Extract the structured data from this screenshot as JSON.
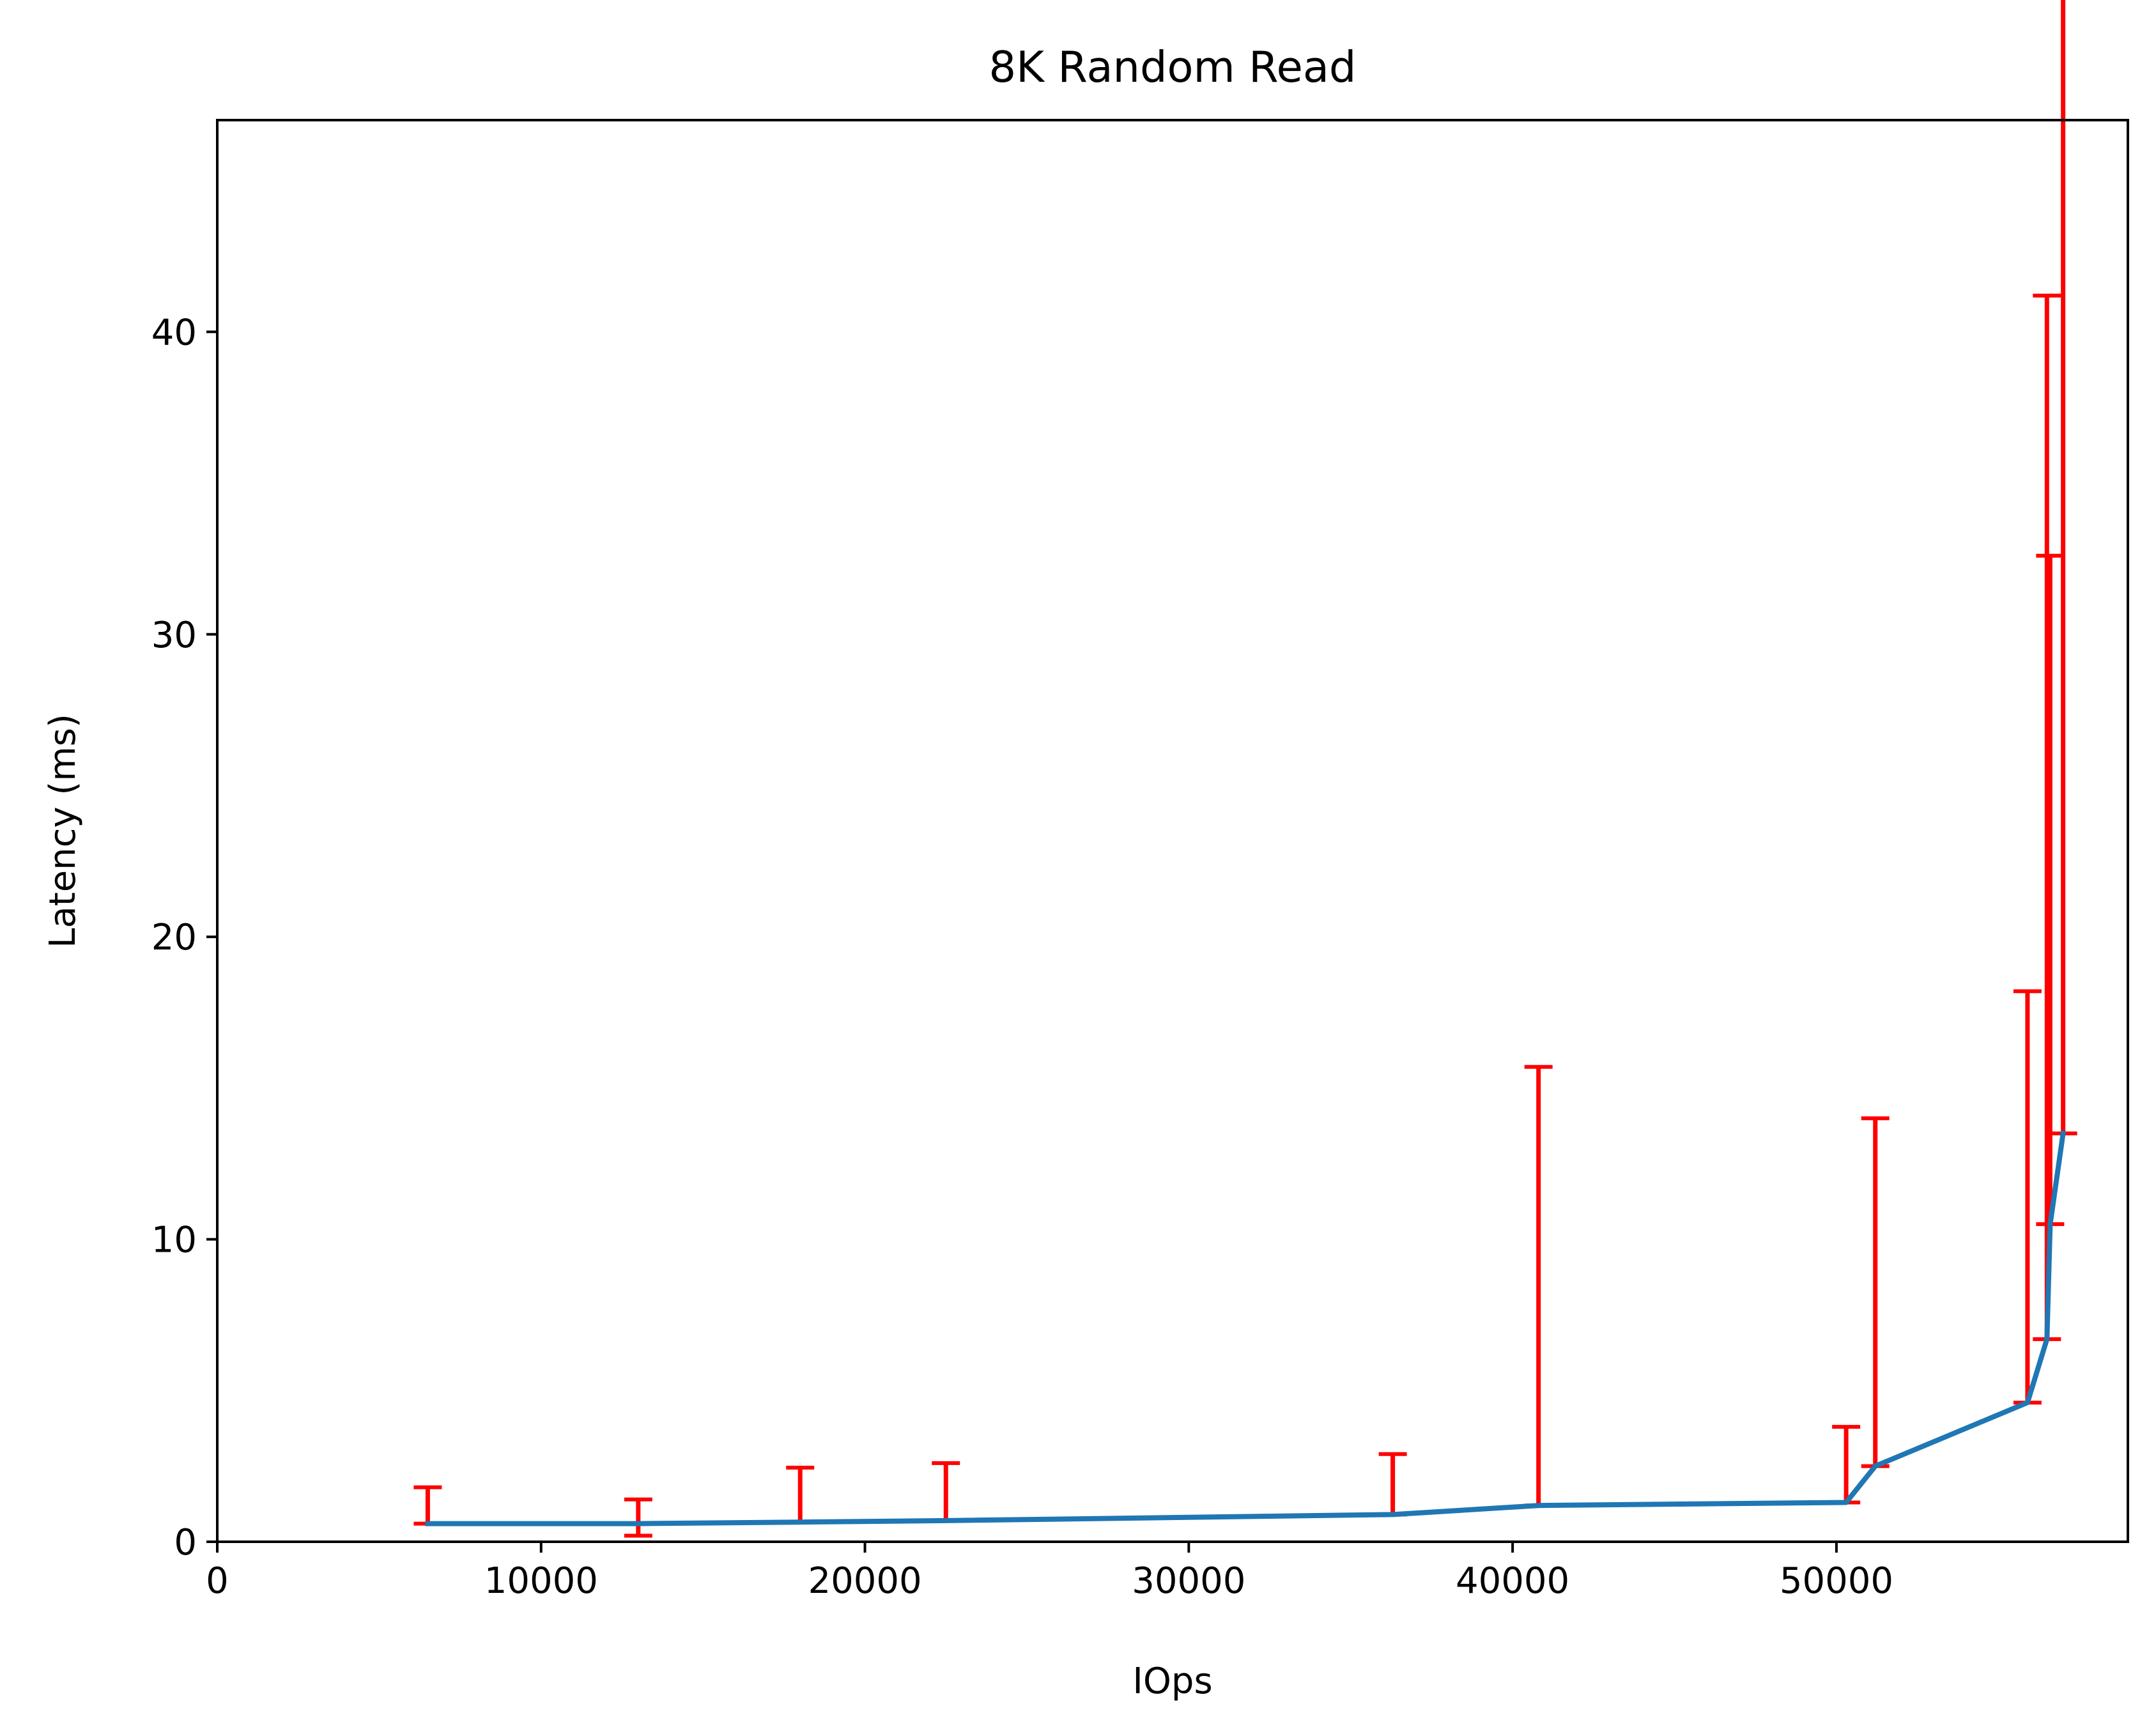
{
  "chart_data": {
    "type": "line",
    "title": "8K  Random Read",
    "xlabel": "IOps",
    "ylabel": "Latency (ms)",
    "xlim": [
      0,
      59000
    ],
    "ylim": [
      0,
      47
    ],
    "xticks": [
      0,
      10000,
      20000,
      30000,
      40000,
      50000
    ],
    "yticks": [
      0,
      10,
      20,
      30,
      40
    ],
    "grid": false,
    "colors": {
      "line": "#1f77b4",
      "errorbar": "#ff0000",
      "axes": "#000000"
    },
    "series": [
      {
        "x": [
          6500,
          13000,
          18000,
          22500,
          36300,
          40800,
          50300,
          51200,
          55900,
          56500,
          56600,
          57000
        ],
        "y": [
          0.6,
          0.6,
          0.65,
          0.7,
          0.9,
          1.2,
          1.3,
          2.5,
          4.6,
          6.7,
          10.5,
          13.5
        ],
        "err_lo": [
          0.0,
          0.4,
          0.0,
          0.0,
          0.0,
          0.0,
          0.0,
          0.0,
          0.0,
          0.0,
          0.0,
          0.0
        ],
        "err_hi": [
          1.2,
          0.8,
          1.8,
          1.9,
          2.0,
          14.5,
          2.5,
          11.5,
          13.6,
          34.5,
          22.1,
          43.8
        ]
      }
    ]
  }
}
